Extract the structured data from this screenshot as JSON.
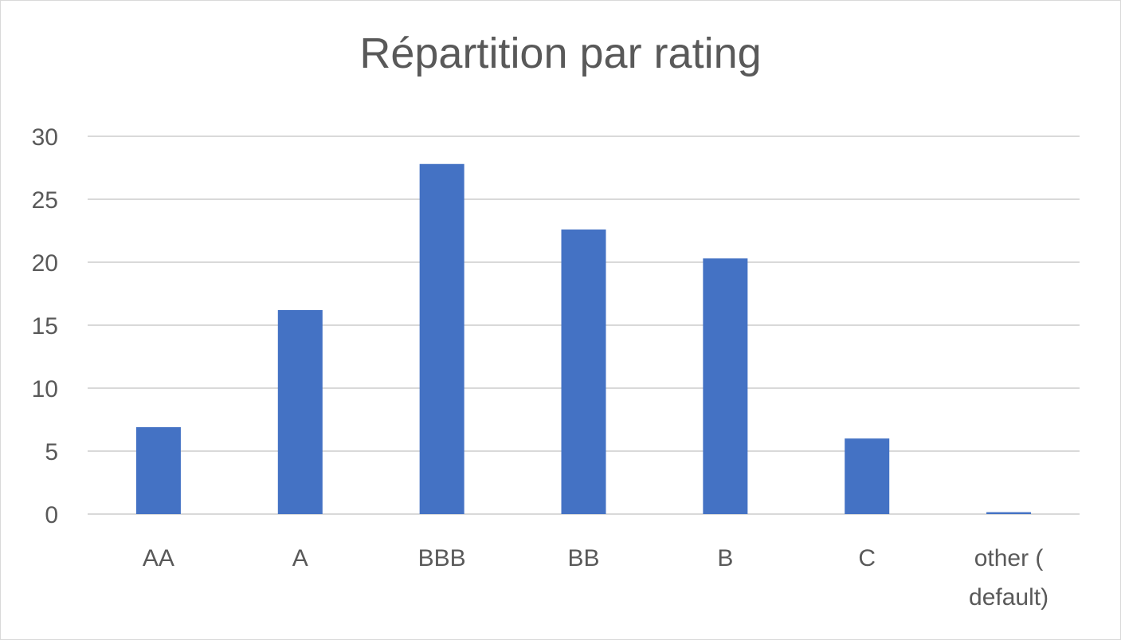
{
  "chart_data": {
    "type": "bar",
    "title": "Répartition par rating",
    "xlabel": "",
    "ylabel": "",
    "categories": [
      "AA",
      "A",
      "BBB",
      "BB",
      "B",
      "C",
      "other ( default)"
    ],
    "category_lines": [
      [
        "AA"
      ],
      [
        "A"
      ],
      [
        "BBB"
      ],
      [
        "BB"
      ],
      [
        "B"
      ],
      [
        "C"
      ],
      [
        "other (",
        "default)"
      ]
    ],
    "values": [
      6.9,
      16.2,
      27.8,
      22.6,
      20.3,
      6.0,
      0.15
    ],
    "ylim": [
      0,
      30
    ],
    "yticks": [
      0,
      5,
      10,
      15,
      20,
      25,
      30
    ],
    "grid": true,
    "legend": "none",
    "bar_color": "#4472c4",
    "grid_color": "#d9d9d9",
    "text_color": "#595959"
  }
}
